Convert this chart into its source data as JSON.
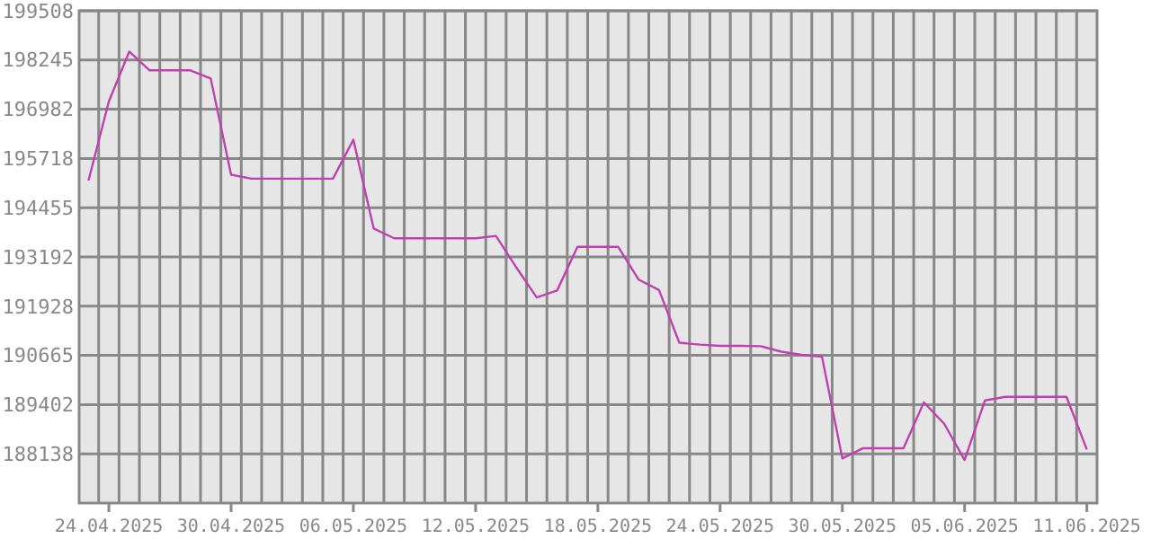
{
  "chart_data": {
    "type": "line",
    "x": [
      "2025-04-23",
      "2025-04-24",
      "2025-04-25",
      "2025-04-26",
      "2025-04-27",
      "2025-04-28",
      "2025-04-29",
      "2025-04-30",
      "2025-05-01",
      "2025-05-02",
      "2025-05-03",
      "2025-05-04",
      "2025-05-05",
      "2025-05-06",
      "2025-05-07",
      "2025-05-08",
      "2025-05-09",
      "2025-05-10",
      "2025-05-11",
      "2025-05-12",
      "2025-05-13",
      "2025-05-14",
      "2025-05-15",
      "2025-05-16",
      "2025-05-17",
      "2025-05-18",
      "2025-05-19",
      "2025-05-20",
      "2025-05-21",
      "2025-05-22",
      "2025-05-23",
      "2025-05-24",
      "2025-05-25",
      "2025-05-26",
      "2025-05-27",
      "2025-05-28",
      "2025-05-29",
      "2025-05-30",
      "2025-05-31",
      "2025-06-01",
      "2025-06-02",
      "2025-06-03",
      "2025-06-04",
      "2025-06-05",
      "2025-06-06",
      "2025-06-07",
      "2025-06-08",
      "2025-06-09",
      "2025-06-10",
      "2025-06-11"
    ],
    "series": [
      {
        "color": "#c040b0",
        "values": [
          195150,
          197180,
          198460,
          197980,
          197980,
          197980,
          197770,
          195300,
          195200,
          195200,
          195200,
          195200,
          195200,
          196200,
          193920,
          193670,
          193670,
          193670,
          193670,
          193670,
          193730,
          192920,
          192150,
          192330,
          193450,
          193450,
          193450,
          192610,
          192340,
          190990,
          190940,
          190910,
          190910,
          190900,
          190760,
          190680,
          190630,
          188020,
          188280,
          188280,
          188280,
          189460,
          188910,
          187980,
          189510,
          189600,
          189600,
          189600,
          189600,
          188250
        ]
      }
    ],
    "xlim": [
      "2025-04-22T13:00",
      "2025-06-11T12:00"
    ],
    "xticks": [
      {
        "value": "2025-04-24",
        "label": "24.04.2025"
      },
      {
        "value": "2025-04-30",
        "label": "30.04.2025"
      },
      {
        "value": "2025-05-06",
        "label": "06.05.2025"
      },
      {
        "value": "2025-05-12",
        "label": "12.05.2025"
      },
      {
        "value": "2025-05-18",
        "label": "18.05.2025"
      },
      {
        "value": "2025-05-24",
        "label": "24.05.2025"
      },
      {
        "value": "2025-05-30",
        "label": "30.05.2025"
      },
      {
        "value": "2025-06-05",
        "label": "05.06.2025"
      },
      {
        "value": "2025-06-11",
        "label": "11.06.2025"
      }
    ],
    "ylim": [
      186875,
      199508
    ],
    "yticks": [
      188138,
      189402,
      190665,
      191928,
      193192,
      194455,
      195718,
      196982,
      198245,
      199508
    ],
    "grid": true,
    "marker": "none",
    "line_style": "solid"
  }
}
